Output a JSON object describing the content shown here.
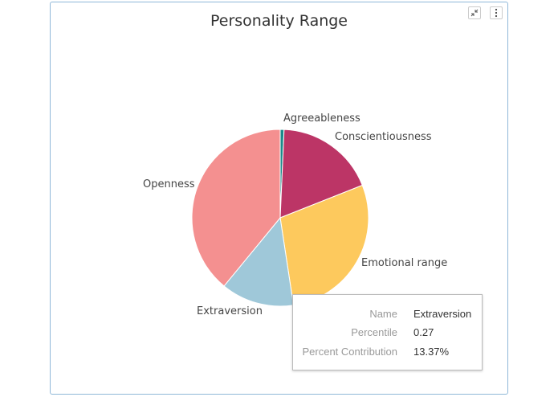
{
  "header": {
    "title": "Personality Range",
    "collapse_icon": "collapse-icon",
    "menu_icon": "vertical-ellipsis-icon"
  },
  "chart_data": {
    "type": "pie",
    "title": "Personality Range",
    "categories": [
      "Agreeableness",
      "Conscientiousness",
      "Emotional range",
      "Extraversion",
      "Openness"
    ],
    "values": [
      0.7,
      18.3,
      28.6,
      13.37,
      39.03
    ],
    "colors": [
      "#1b8a8a",
      "#bc3566",
      "#fdc95d",
      "#9fc8d9",
      "#f49090"
    ],
    "legend": "none"
  },
  "labels": {
    "agreeableness": "Agreeableness",
    "conscientiousness": "Conscientiousness",
    "emotional": "Emotional range",
    "extraversion": "Extraversion",
    "openness": "Openness"
  },
  "tooltip": {
    "name_label": "Name",
    "name_value": "Extraversion",
    "percentile_label": "Percentile",
    "percentile_value": "0.27",
    "contribution_label": "Percent Contribution",
    "contribution_value": "13.37%"
  }
}
